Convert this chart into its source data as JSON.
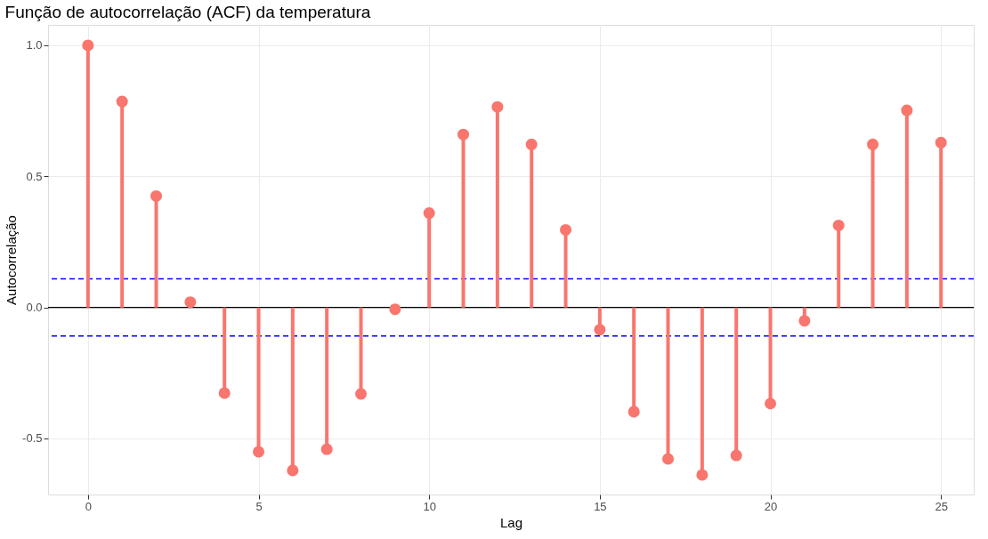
{
  "chart_data": {
    "type": "lollipop",
    "title": "Função de autocorrelação (ACF) da temperatura",
    "xlabel": "Lag",
    "ylabel": "Autocorrelação",
    "x": [
      0,
      1,
      2,
      3,
      4,
      5,
      6,
      7,
      8,
      9,
      10,
      11,
      12,
      13,
      14,
      15,
      16,
      17,
      18,
      19,
      20,
      21,
      22,
      23,
      24,
      25
    ],
    "series": [
      {
        "color": "#f8766d",
        "values": [
          1.0,
          0.786,
          0.425,
          0.02,
          -0.327,
          -0.551,
          -0.622,
          -0.541,
          -0.33,
          -0.007,
          0.36,
          0.66,
          0.765,
          0.622,
          0.296,
          -0.085,
          -0.398,
          -0.578,
          -0.639,
          -0.565,
          -0.367,
          -0.051,
          0.313,
          0.622,
          0.752,
          0.629
        ]
      }
    ],
    "xlim": [
      -1.17,
      25.96
    ],
    "xticks": [
      0,
      5,
      10,
      15,
      20,
      25
    ],
    "ylim": [
      -0.714,
      1.078
    ],
    "yticks": [
      {
        "value": -0.5,
        "label": "-0.5"
      },
      {
        "value": 0,
        "label": "0.0"
      },
      {
        "value": 0.5,
        "label": "0.5"
      },
      {
        "value": 1,
        "label": "1.0"
      }
    ],
    "ref_lines": [
      {
        "axis": "y",
        "value": 0,
        "color": "#000000",
        "line_style": "solid"
      },
      {
        "axis": "y",
        "value": 0.109,
        "color": "#0000ff",
        "line_style": "dashed"
      },
      {
        "axis": "y",
        "value": -0.109,
        "color": "#0000ff",
        "line_style": "dashed"
      }
    ],
    "grid": true,
    "marker": "circle"
  }
}
